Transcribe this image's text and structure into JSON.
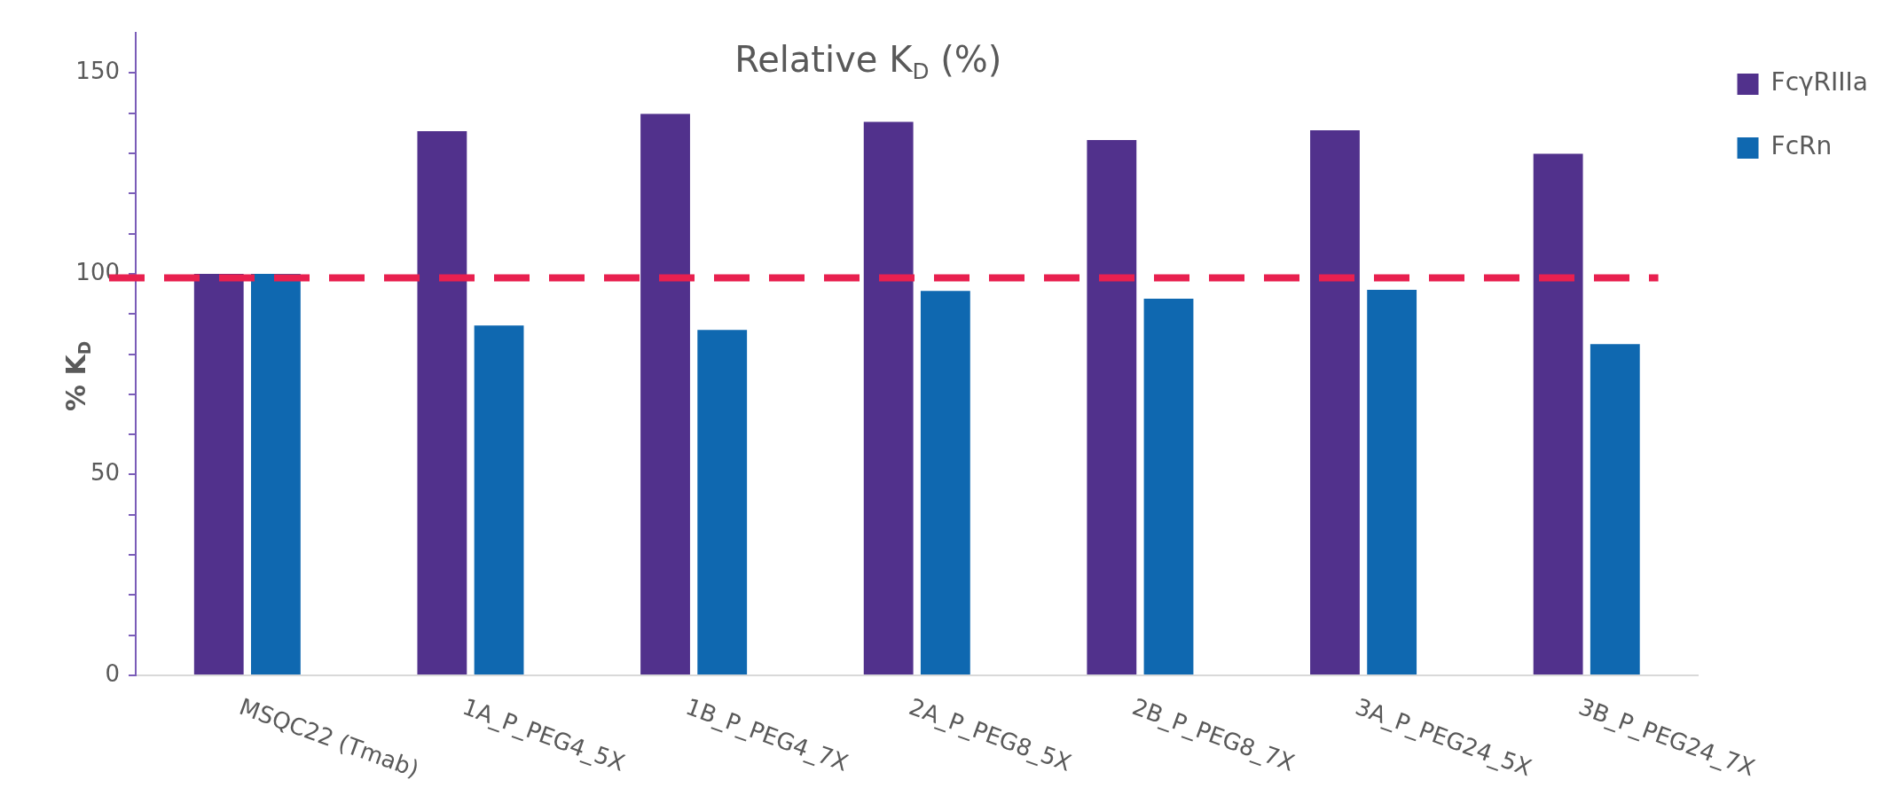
{
  "chart_data": {
    "type": "bar",
    "title": "Relative K$_{D}$ (%)",
    "ylabel": "% K$_{D}$",
    "categories": [
      "MSQC22 (Tmab)",
      "1A_P_PEG4_5X",
      "1B_P_PEG4_7X",
      "2A_P_PEG8_5X",
      "2B_P_PEG8_7X",
      "3A_P_PEG24_5X",
      "3B_P_PEG24_7X"
    ],
    "series": [
      {
        "name": "FcγRIIIa",
        "color": "#51318c",
        "values": [
          100,
          135.5,
          139.8,
          137.8,
          133.3,
          135.7,
          129.9
        ]
      },
      {
        "name": "FcRn",
        "color": "#0f68b0",
        "values": [
          100,
          87.1,
          86,
          95.7,
          93.8,
          96,
          82.5
        ]
      }
    ],
    "ylim": [
      0,
      160
    ],
    "yticks": [
      0,
      {
        "value": 10,
        "label": null
      },
      {
        "value": 20,
        "label": null
      },
      {
        "value": 30,
        "label": null
      },
      {
        "value": 40,
        "label": null
      },
      50,
      {
        "value": 60,
        "label": null
      },
      {
        "value": 70,
        "label": null
      },
      {
        "value": 80,
        "label": null
      },
      {
        "value": 90,
        "label": null
      },
      100,
      {
        "value": 110,
        "label": null
      },
      {
        "value": 120,
        "label": null
      },
      {
        "value": 130,
        "label": null
      },
      {
        "value": 140,
        "label": null
      },
      150
    ],
    "ref_lines": [
      {
        "axis": "y",
        "value": 99,
        "color": "#e8204f",
        "line_style": "dashed"
      }
    ],
    "grid": false,
    "legend": "top right"
  }
}
